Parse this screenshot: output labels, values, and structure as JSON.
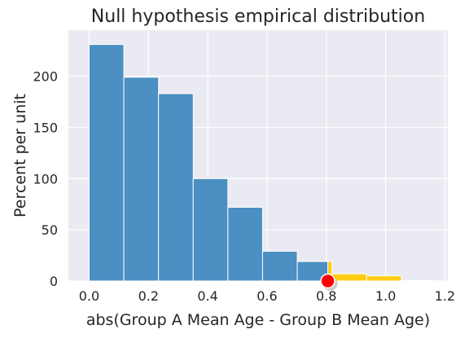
{
  "chart_data": {
    "type": "bar",
    "title": "Null hypothesis empirical distribution",
    "xlabel": "abs(Group A Mean Age - Group B Mean Age)",
    "ylabel": "Percent per unit",
    "xlim": [
      -0.07,
      1.21
    ],
    "ylim": [
      0,
      245
    ],
    "xticks": [
      {
        "value": 0.0,
        "label": "0.0"
      },
      {
        "value": 0.2,
        "label": "0.2"
      },
      {
        "value": 0.4,
        "label": "0.4"
      },
      {
        "value": 0.6,
        "label": "0.6"
      },
      {
        "value": 0.8,
        "label": "0.8"
      },
      {
        "value": 1.0,
        "label": "1.0"
      },
      {
        "value": 1.2,
        "label": "1.2"
      }
    ],
    "yticks": [
      {
        "value": 0,
        "label": "0"
      },
      {
        "value": 50,
        "label": "50"
      },
      {
        "value": 100,
        "label": "100"
      },
      {
        "value": 150,
        "label": "150"
      },
      {
        "value": 200,
        "label": "200"
      }
    ],
    "grid": true,
    "bins": [
      {
        "x0": 0.0,
        "x1": 0.117,
        "value": 231
      },
      {
        "x0": 0.117,
        "x1": 0.234,
        "value": 199
      },
      {
        "x0": 0.234,
        "x1": 0.351,
        "value": 183
      },
      {
        "x0": 0.351,
        "x1": 0.468,
        "value": 100
      },
      {
        "x0": 0.468,
        "x1": 0.585,
        "value": 72
      },
      {
        "x0": 0.585,
        "x1": 0.702,
        "value": 29
      },
      {
        "x0": 0.702,
        "x1": 0.805,
        "value": 19
      },
      {
        "x0": 0.805,
        "x1": 0.819,
        "value": 19
      },
      {
        "x0": 0.819,
        "x1": 0.936,
        "value": 7
      },
      {
        "x0": 0.936,
        "x1": 1.053,
        "value": 5
      },
      {
        "x0": 1.053,
        "x1": 1.17,
        "value": 0.5
      }
    ],
    "shade_from": 0.805,
    "observed_value": 0.805,
    "colors": {
      "bar": "#4b8fc3",
      "shaded": "#ffcc12",
      "background": "#eaeaf2",
      "grid": "#ffffff",
      "marker": "#ff0000",
      "text": "#262626"
    }
  }
}
